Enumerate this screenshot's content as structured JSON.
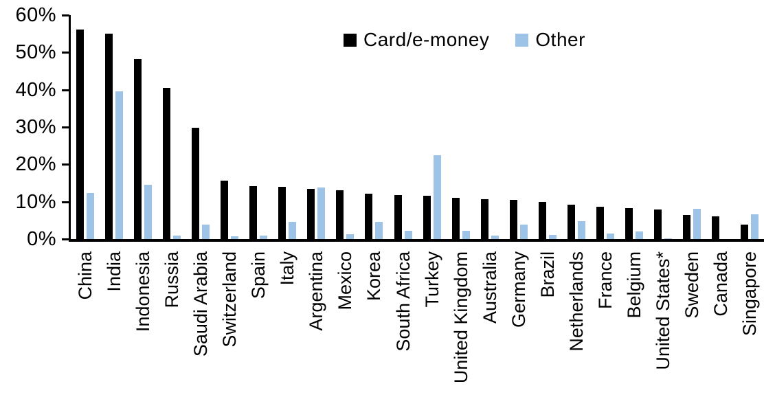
{
  "chart_data": {
    "type": "bar",
    "title": "",
    "grid": false,
    "legend_position": "top-center",
    "ylim": [
      0,
      60
    ],
    "y_tick_labels": [
      "60%",
      "50%",
      "40%",
      "30%",
      "20%",
      "10%",
      "0%"
    ],
    "categories": [
      "China",
      "India",
      "Indonesia",
      "Russia",
      "Saudi Arabia",
      "Switzerland",
      "Spain",
      "Italy",
      "Argentina",
      "Mexico",
      "Korea",
      "South Africa",
      "Turkey",
      "United Kingdom",
      "Australia",
      "Germany",
      "Brazil",
      "Netherlands",
      "France",
      "Belgium",
      "United States*",
      "Sweden",
      "Canada",
      "Singapore"
    ],
    "series": [
      {
        "name": "Card/e-money",
        "color": "#000000",
        "values": [
          56.2,
          55.0,
          48.2,
          40.5,
          29.8,
          15.6,
          14.2,
          14.0,
          13.4,
          13.0,
          12.2,
          11.7,
          11.6,
          11.0,
          10.7,
          10.5,
          10.0,
          9.2,
          8.6,
          8.2,
          7.9,
          6.5,
          6.0,
          3.8
        ]
      },
      {
        "name": "Other",
        "color": "#9DC3E6",
        "values": [
          12.3,
          39.6,
          14.5,
          1.0,
          3.9,
          0.8,
          1.0,
          4.6,
          13.8,
          1.3,
          4.6,
          2.3,
          22.5,
          2.2,
          1.0,
          3.9,
          1.1,
          4.8,
          1.5,
          2.0,
          0.2,
          8.1,
          0.0,
          6.6
        ]
      }
    ]
  },
  "colors": {
    "axis": "#000000",
    "text": "#000000",
    "background": "#ffffff"
  }
}
